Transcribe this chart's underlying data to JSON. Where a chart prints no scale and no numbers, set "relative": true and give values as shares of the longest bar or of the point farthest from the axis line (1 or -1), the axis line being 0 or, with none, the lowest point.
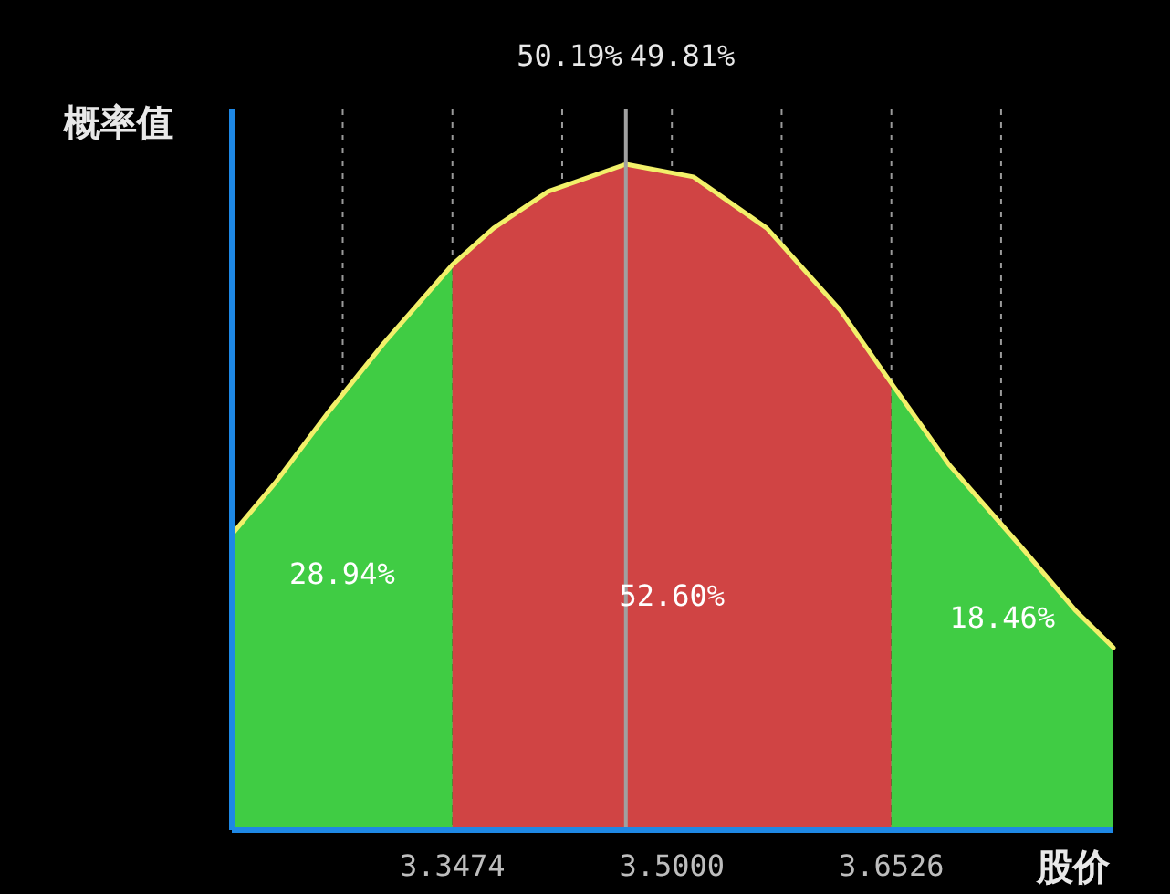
{
  "chart_data": {
    "type": "area",
    "relative": true,
    "ylabel": "概率值",
    "xlabel": "股价",
    "xlim": [
      3.194,
      3.807
    ],
    "xticks": [
      {
        "value": 3.2711,
        "label": null
      },
      3.3474,
      {
        "value": 3.4237,
        "label": null
      },
      {
        "value": 3.5,
        "label": "3.5000"
      },
      {
        "value": 3.5763,
        "label": null
      },
      3.6526,
      {
        "value": 3.7289,
        "label": null
      }
    ],
    "grid": "x",
    "series": [
      {
        "color": "#40cc44",
        "x": [
          3.194,
          3.224,
          3.262,
          3.3,
          3.3474
        ],
        "values": [
          0.444,
          0.521,
          0.63,
          0.732,
          0.849
        ]
      },
      {
        "color": "#d04444",
        "x": [
          3.3474,
          3.376,
          3.414,
          3.468,
          3.515,
          3.566,
          3.617,
          3.6526
        ],
        "values": [
          0.849,
          0.904,
          0.959,
          1,
          0.981,
          0.904,
          0.781,
          0.671
        ]
      },
      {
        "color": "#40cc44",
        "x": [
          3.6526,
          3.693,
          3.743,
          3.781,
          3.807
        ],
        "values": [
          0.671,
          0.548,
          0.425,
          0.329,
          0.274
        ]
      },
      {
        "type": "line",
        "color": "#f2f06a",
        "x": [
          3.194,
          3.224,
          3.262,
          3.3,
          3.3474,
          3.376,
          3.414,
          3.468,
          3.515,
          3.566,
          3.617,
          3.6526,
          3.693,
          3.743,
          3.781,
          3.807
        ],
        "values": [
          0.444,
          0.521,
          0.63,
          0.732,
          0.849,
          0.904,
          0.959,
          1,
          0.981,
          0.904,
          0.781,
          0.671,
          0.548,
          0.425,
          0.329,
          0.274
        ]
      }
    ],
    "ref_lines": [
      {
        "axis": "x",
        "value": 3.468,
        "color": "#a0a0a0"
      }
    ],
    "annotations": [
      "50.19%",
      "49.81%",
      "28.94%",
      "52.60%",
      "18.46%"
    ]
  }
}
